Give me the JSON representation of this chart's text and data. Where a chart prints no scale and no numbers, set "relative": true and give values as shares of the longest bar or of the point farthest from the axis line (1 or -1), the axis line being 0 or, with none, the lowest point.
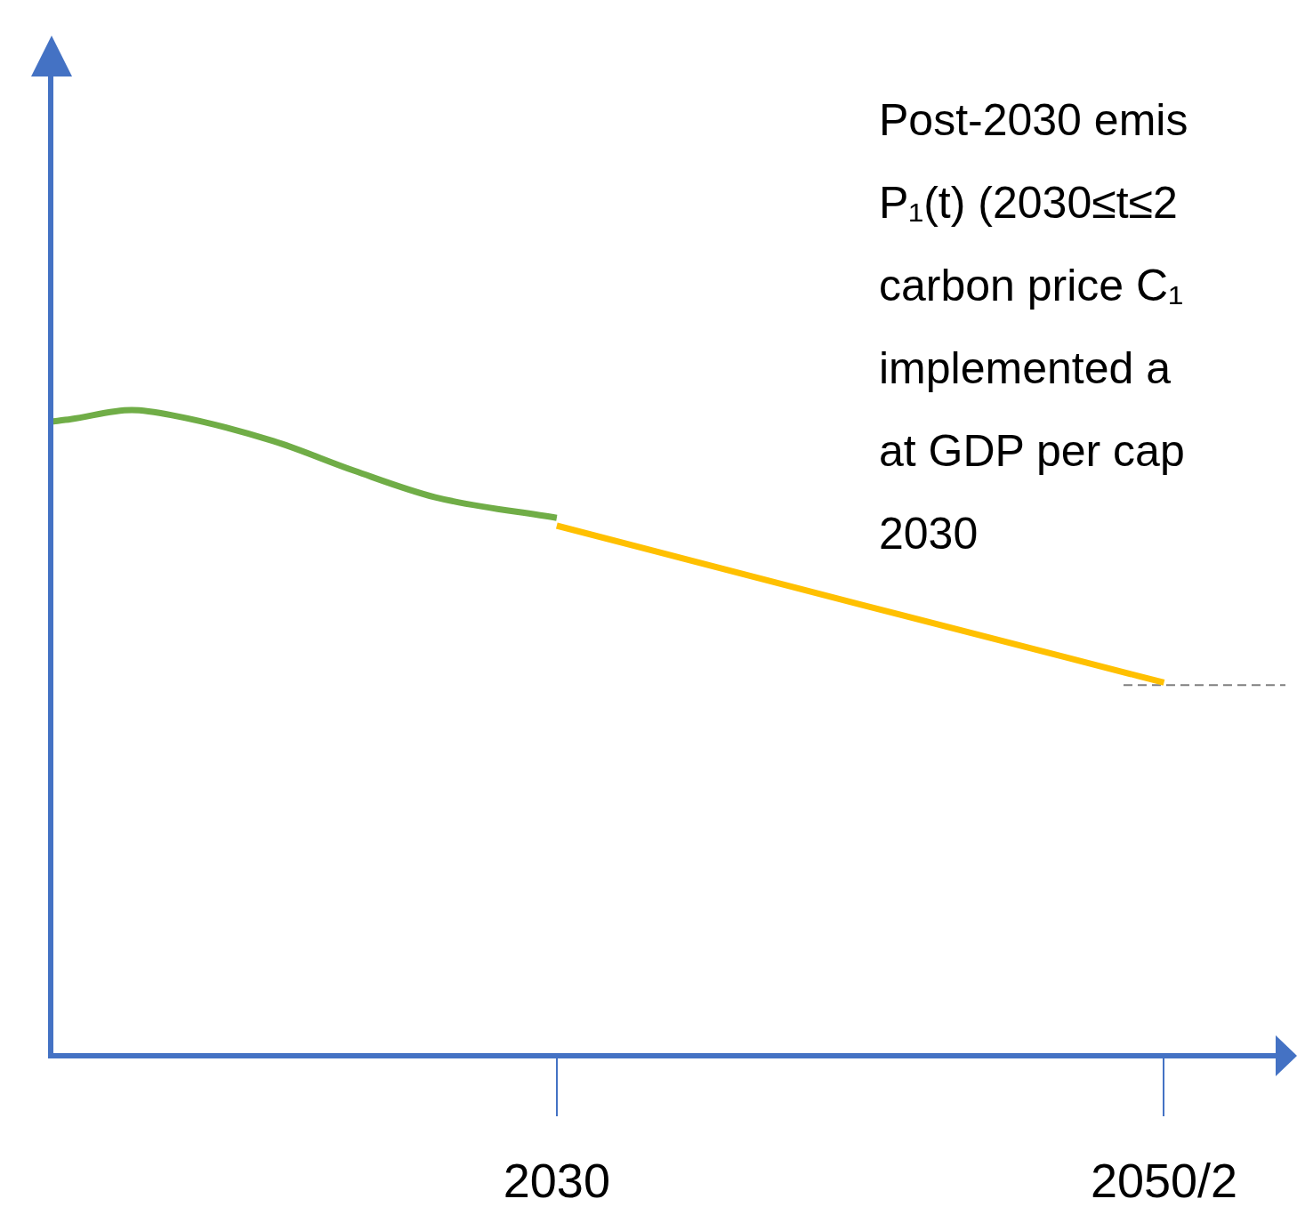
{
  "chart_data": {
    "type": "line",
    "relative": true,
    "grid": false,
    "legend": false,
    "marker": "none",
    "categories": [
      null,
      null,
      null,
      null,
      null,
      null,
      null,
      null,
      null,
      null,
      null,
      null,
      null,
      null,
      null,
      null,
      null,
      null,
      null,
      null,
      null,
      null,
      null,
      null,
      null,
      "2030",
      null,
      null,
      null,
      null,
      null,
      null,
      null,
      null,
      null,
      null,
      null,
      null,
      null,
      null,
      null,
      null,
      null,
      null,
      null,
      null,
      null,
      null,
      null,
      null,
      null,
      null,
      null,
      null,
      null,
      "2050/2",
      null,
      null,
      null,
      null,
      null,
      null
    ],
    "annotations": [
      "Post-2030 emis\nP₁(t) (2030≤t≤2\ncarbon price C₁\nimplemented a\nat GDP per cap\n2030"
    ],
    "series": [
      {
        "color": "#70ad47",
        "line_style": "solid",
        "values": [
          0.982,
          0.986,
          null,
          null,
          1,
          null,
          0.992,
          null,
          null,
          null,
          null,
          0.952,
          null,
          null,
          null,
          0.906,
          null,
          null,
          null,
          0.865,
          null,
          null,
          null,
          null,
          null,
          0.833,
          null,
          null,
          null,
          null,
          null,
          null,
          null,
          null,
          null,
          null,
          null,
          null,
          null,
          null,
          null,
          null,
          null,
          null,
          null,
          null,
          null,
          null,
          null,
          null,
          null,
          null,
          null,
          null,
          null,
          null,
          null,
          null,
          null,
          null,
          null,
          null
        ]
      },
      {
        "color": "#ffc000",
        "line_style": "solid",
        "values": [
          null,
          null,
          null,
          null,
          null,
          null,
          null,
          null,
          null,
          null,
          null,
          null,
          null,
          null,
          null,
          null,
          null,
          null,
          null,
          null,
          null,
          null,
          null,
          null,
          null,
          0.821,
          null,
          null,
          null,
          null,
          null,
          null,
          null,
          null,
          null,
          null,
          null,
          null,
          null,
          null,
          0.699,
          null,
          null,
          null,
          null,
          null,
          null,
          null,
          null,
          null,
          null,
          null,
          null,
          null,
          null,
          0.578,
          null,
          null,
          null,
          null,
          null,
          null
        ]
      },
      {
        "color": "#7f7f7f",
        "line_style": "dashed",
        "values": [
          null,
          null,
          null,
          null,
          null,
          null,
          null,
          null,
          null,
          null,
          null,
          null,
          null,
          null,
          null,
          null,
          null,
          null,
          null,
          null,
          null,
          null,
          null,
          null,
          null,
          null,
          null,
          null,
          null,
          null,
          null,
          null,
          null,
          null,
          null,
          null,
          null,
          null,
          null,
          null,
          null,
          null,
          null,
          null,
          null,
          null,
          null,
          null,
          null,
          null,
          null,
          null,
          null,
          0.574,
          null,
          null,
          null,
          null,
          null,
          null,
          null,
          0.574
        ]
      }
    ]
  }
}
